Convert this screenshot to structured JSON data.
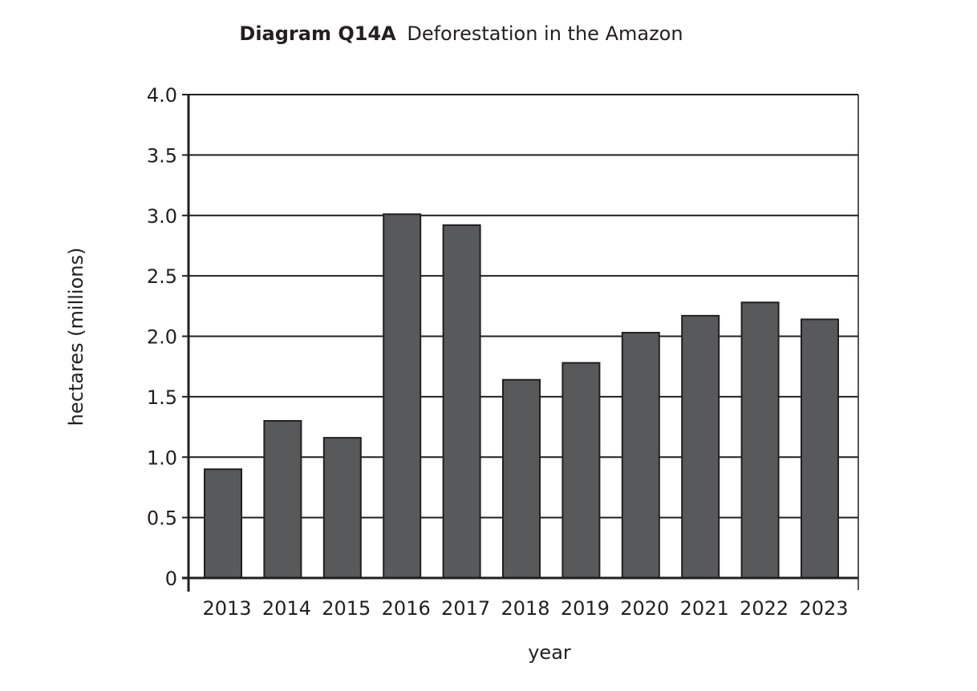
{
  "chart_data": {
    "type": "bar",
    "title_bold": "Diagram Q14A",
    "title": "Deforestation in the Amazon",
    "xlabel": "year",
    "ylabel": "hectares (millions)",
    "ylim": [
      0,
      4.0
    ],
    "yticks": [
      "0",
      "0.5",
      "1.0",
      "1.5",
      "2.0",
      "2.5",
      "3.0",
      "3.5",
      "4.0"
    ],
    "categories": [
      "2013",
      "2014",
      "2015",
      "2016",
      "2017",
      "2018",
      "2019",
      "2020",
      "2021",
      "2022",
      "2023"
    ],
    "values": [
      0.9,
      1.3,
      1.16,
      3.01,
      2.92,
      1.64,
      1.78,
      2.03,
      2.17,
      2.28,
      2.14
    ],
    "grid": true,
    "bar_color": "#58595b"
  }
}
